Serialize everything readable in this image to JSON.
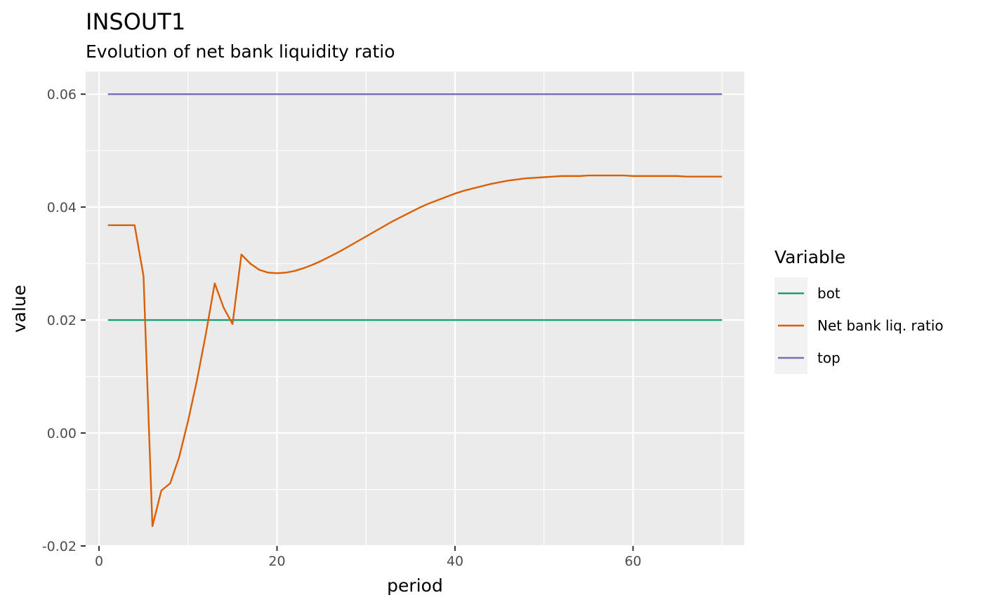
{
  "chart_data": {
    "type": "line",
    "title": "INSOUT1",
    "subtitle": "Evolution of net bank liquidity ratio",
    "xlabel": "period",
    "ylabel": "value",
    "xlim": [
      -1.5,
      72.5
    ],
    "ylim": [
      -0.02,
      0.064
    ],
    "x_ticks": [
      0,
      20,
      40,
      60
    ],
    "x_tick_labels": [
      "0",
      "20",
      "40",
      "60"
    ],
    "y_ticks": [
      -0.02,
      0.0,
      0.02,
      0.04,
      0.06
    ],
    "y_tick_labels": [
      "-0.02",
      "0.00",
      "0.02",
      "0.04",
      "0.06"
    ],
    "grid": true,
    "legend": {
      "title": "Variable",
      "position": "right"
    },
    "series": [
      {
        "name": "bot",
        "color": "#1b9e77",
        "x": [
          1,
          70
        ],
        "y": [
          0.02,
          0.02
        ]
      },
      {
        "name": "Net bank liq. ratio",
        "color": "#d95f02",
        "x": [
          1,
          2,
          3,
          4,
          5,
          6,
          7,
          8,
          9,
          10,
          11,
          12,
          13,
          14,
          15,
          16,
          17,
          18,
          19,
          20,
          21,
          22,
          23,
          24,
          25,
          26,
          27,
          28,
          29,
          30,
          31,
          32,
          33,
          34,
          35,
          36,
          37,
          38,
          39,
          40,
          41,
          42,
          43,
          44,
          45,
          46,
          47,
          48,
          49,
          50,
          51,
          52,
          53,
          54,
          55,
          56,
          57,
          58,
          59,
          60,
          61,
          62,
          63,
          64,
          65,
          66,
          67,
          68,
          69,
          70
        ],
        "y": [
          0.0368,
          0.0368,
          0.0368,
          0.0368,
          0.0278,
          -0.0165,
          -0.0102,
          -0.0089,
          -0.0043,
          0.0021,
          0.0093,
          0.0175,
          0.0265,
          0.0222,
          0.0193,
          0.0316,
          0.03,
          0.0289,
          0.0284,
          0.0283,
          0.0284,
          0.0287,
          0.0292,
          0.0298,
          0.0305,
          0.0313,
          0.0321,
          0.033,
          0.0339,
          0.0348,
          0.0357,
          0.0366,
          0.0375,
          0.0383,
          0.0391,
          0.0399,
          0.0406,
          0.0412,
          0.0418,
          0.0424,
          0.0429,
          0.0433,
          0.0437,
          0.0441,
          0.0444,
          0.0447,
          0.0449,
          0.0451,
          0.0452,
          0.0453,
          0.0454,
          0.0455,
          0.0455,
          0.0455,
          0.0456,
          0.0456,
          0.0456,
          0.0456,
          0.0456,
          0.0455,
          0.0455,
          0.0455,
          0.0455,
          0.0455,
          0.0455,
          0.0454,
          0.0454,
          0.0454,
          0.0454,
          0.0454
        ]
      },
      {
        "name": "top",
        "color": "#7570b3",
        "x": [
          1,
          70
        ],
        "y": [
          0.06,
          0.06
        ]
      }
    ]
  }
}
